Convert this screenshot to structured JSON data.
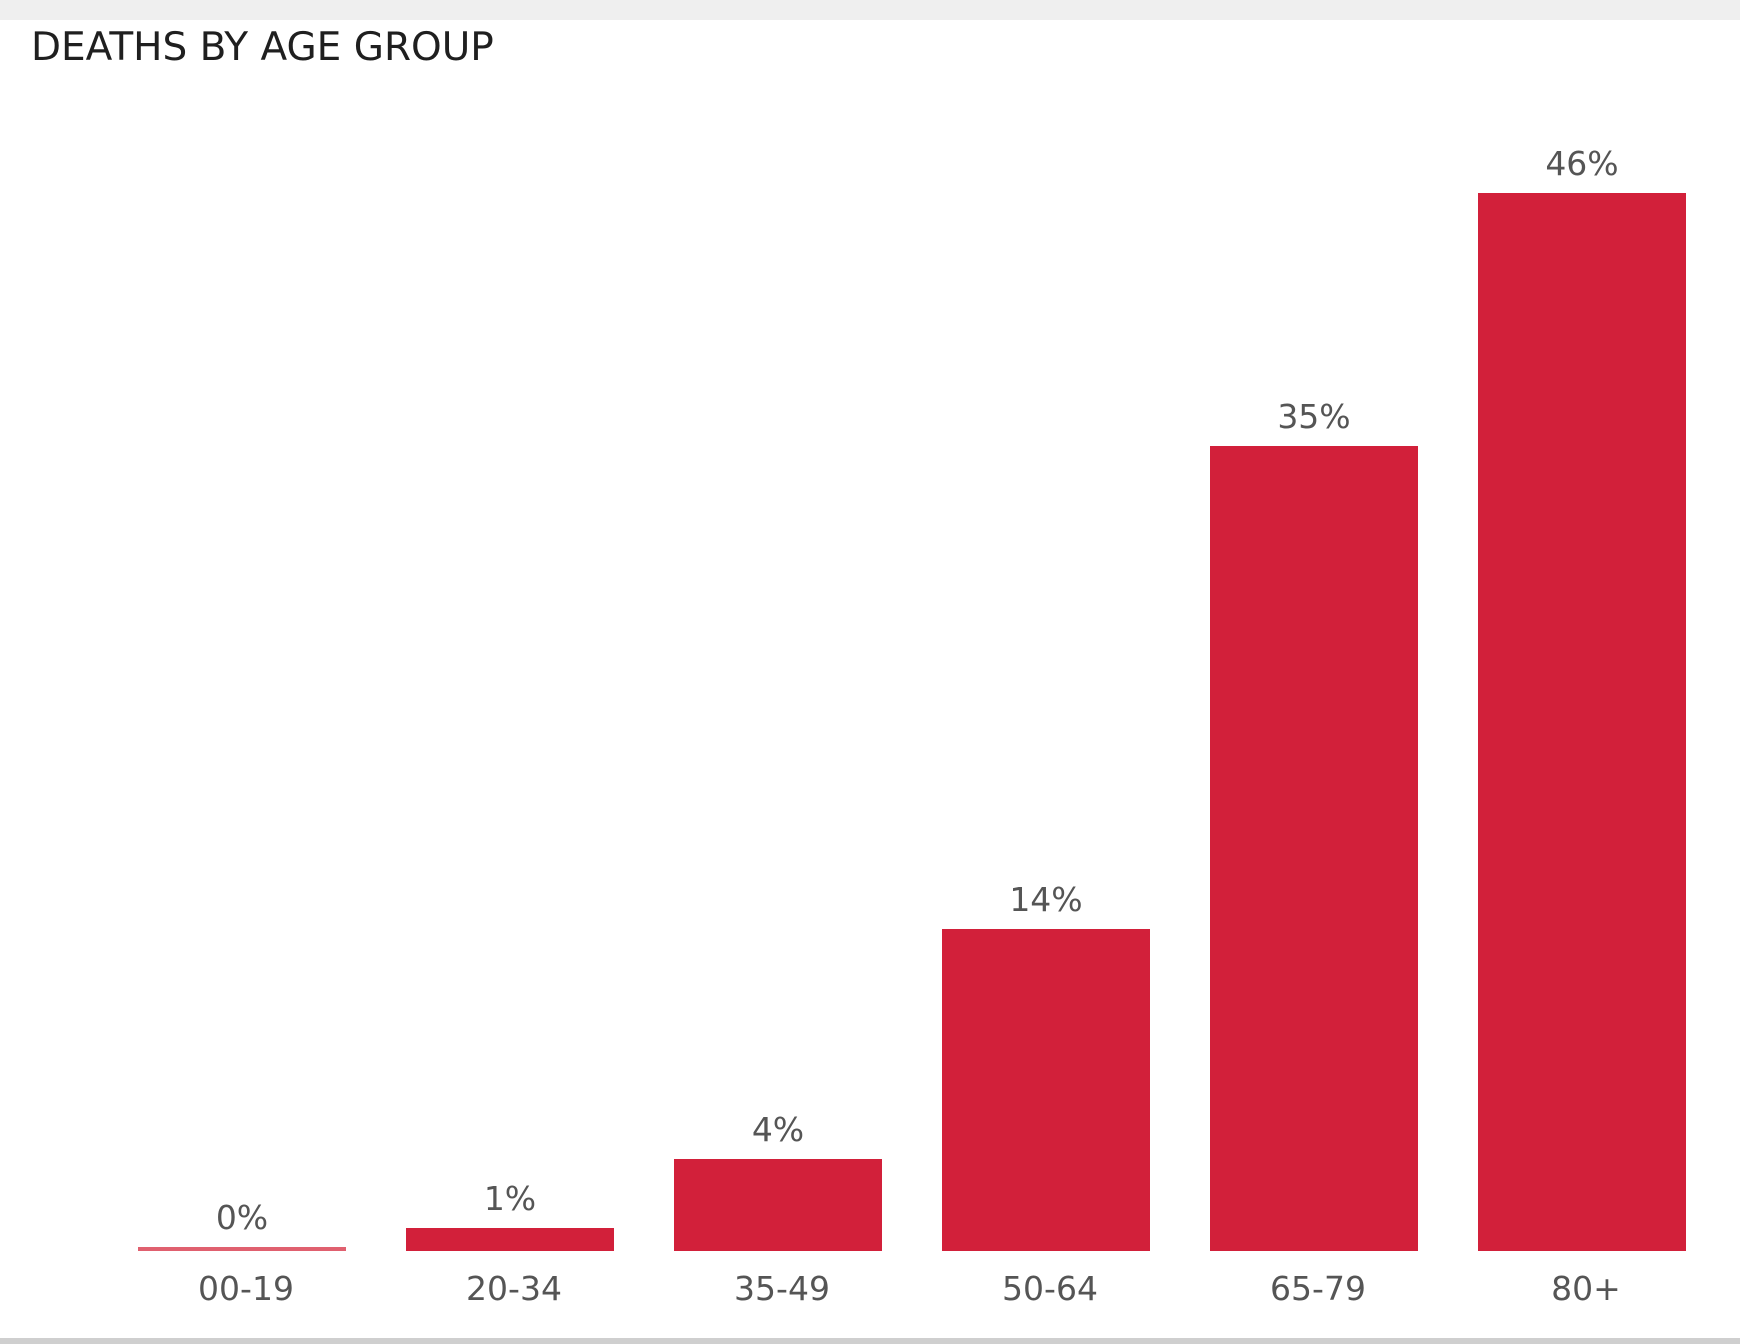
{
  "colors": {
    "bar": "#d2203a",
    "zero_bar": "#e0606f",
    "label": "#555555",
    "title": "#1f1f1f"
  },
  "chart_data": {
    "type": "bar",
    "title": "DEATHS BY AGE GROUP",
    "xlabel": "",
    "ylabel": "",
    "categories": [
      "00-19",
      "20-34",
      "35-49",
      "50-64",
      "65-79",
      "80+"
    ],
    "values": [
      0,
      1,
      4,
      14,
      35,
      46
    ],
    "value_labels": [
      "0%",
      "1%",
      "4%",
      "14%",
      "35%",
      "46%"
    ],
    "unit": "%",
    "ylim": [
      0,
      50
    ],
    "grid": false,
    "legend": "none"
  }
}
